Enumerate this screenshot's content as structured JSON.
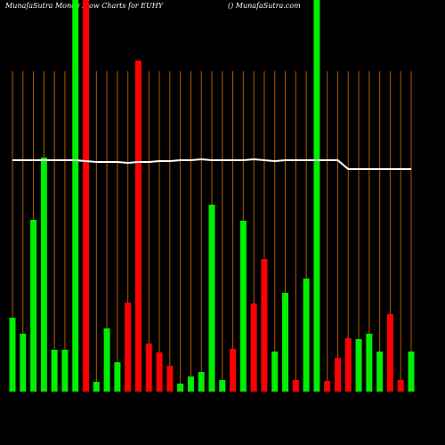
{
  "chart_data": {
    "type": "bar",
    "title": "MunafaSutra  Money Flow  Charts for EUHY",
    "subtitle": "() MunafaSutra.com",
    "categories": [
      null,
      null,
      null,
      null,
      null,
      null,
      null,
      null,
      null,
      null,
      null,
      null,
      null,
      null,
      null,
      null,
      null,
      null,
      null,
      null,
      null,
      null,
      null,
      null,
      null,
      null,
      null,
      null,
      null,
      null,
      null,
      null,
      null,
      null,
      null,
      null,
      null,
      null,
      null
    ],
    "values": [
      83,
      65,
      193,
      263,
      47,
      47,
      440,
      440,
      11,
      71,
      33,
      100,
      372,
      54,
      44,
      29,
      9,
      17,
      22,
      210,
      13,
      48,
      192,
      99,
      149,
      45,
      111,
      13,
      127,
      440,
      12,
      38,
      60,
      59,
      65,
      45,
      87,
      13,
      45
    ],
    "colors": [
      "#00ee00",
      "#00ee00",
      "#00ee00",
      "#00ee00",
      "#00ee00",
      "#00ee00",
      "#00ee00",
      "#ff0000",
      "#00ee00",
      "#00ee00",
      "#00ee00",
      "#ff0000",
      "#ff0000",
      "#ff0000",
      "#ff0000",
      "#ff0000",
      "#00ee00",
      "#00ee00",
      "#00ee00",
      "#00ee00",
      "#00ee00",
      "#ff0000",
      "#00ee00",
      "#ff0000",
      "#ff0000",
      "#00ee00",
      "#00ee00",
      "#ff0000",
      "#00ee00",
      "#00ee00",
      "#ff0000",
      "#ff0000",
      "#ff0000",
      "#00ee00",
      "#00ee00",
      "#00ee00",
      "#ff0000",
      "#ff0000",
      "#00ee00"
    ],
    "line": {
      "color": "#ffffff",
      "values": [
        260,
        260,
        260,
        260,
        260,
        260,
        260,
        259,
        258,
        258,
        258,
        257,
        258,
        258,
        259,
        259,
        260,
        260,
        261,
        260,
        260,
        260,
        260,
        261,
        260,
        259,
        260,
        260,
        260,
        260,
        260,
        260,
        250,
        250,
        250,
        250,
        250,
        250,
        250
      ]
    },
    "ylim": [
      0,
      440
    ],
    "grid": true,
    "grid_color": "#b35900"
  }
}
